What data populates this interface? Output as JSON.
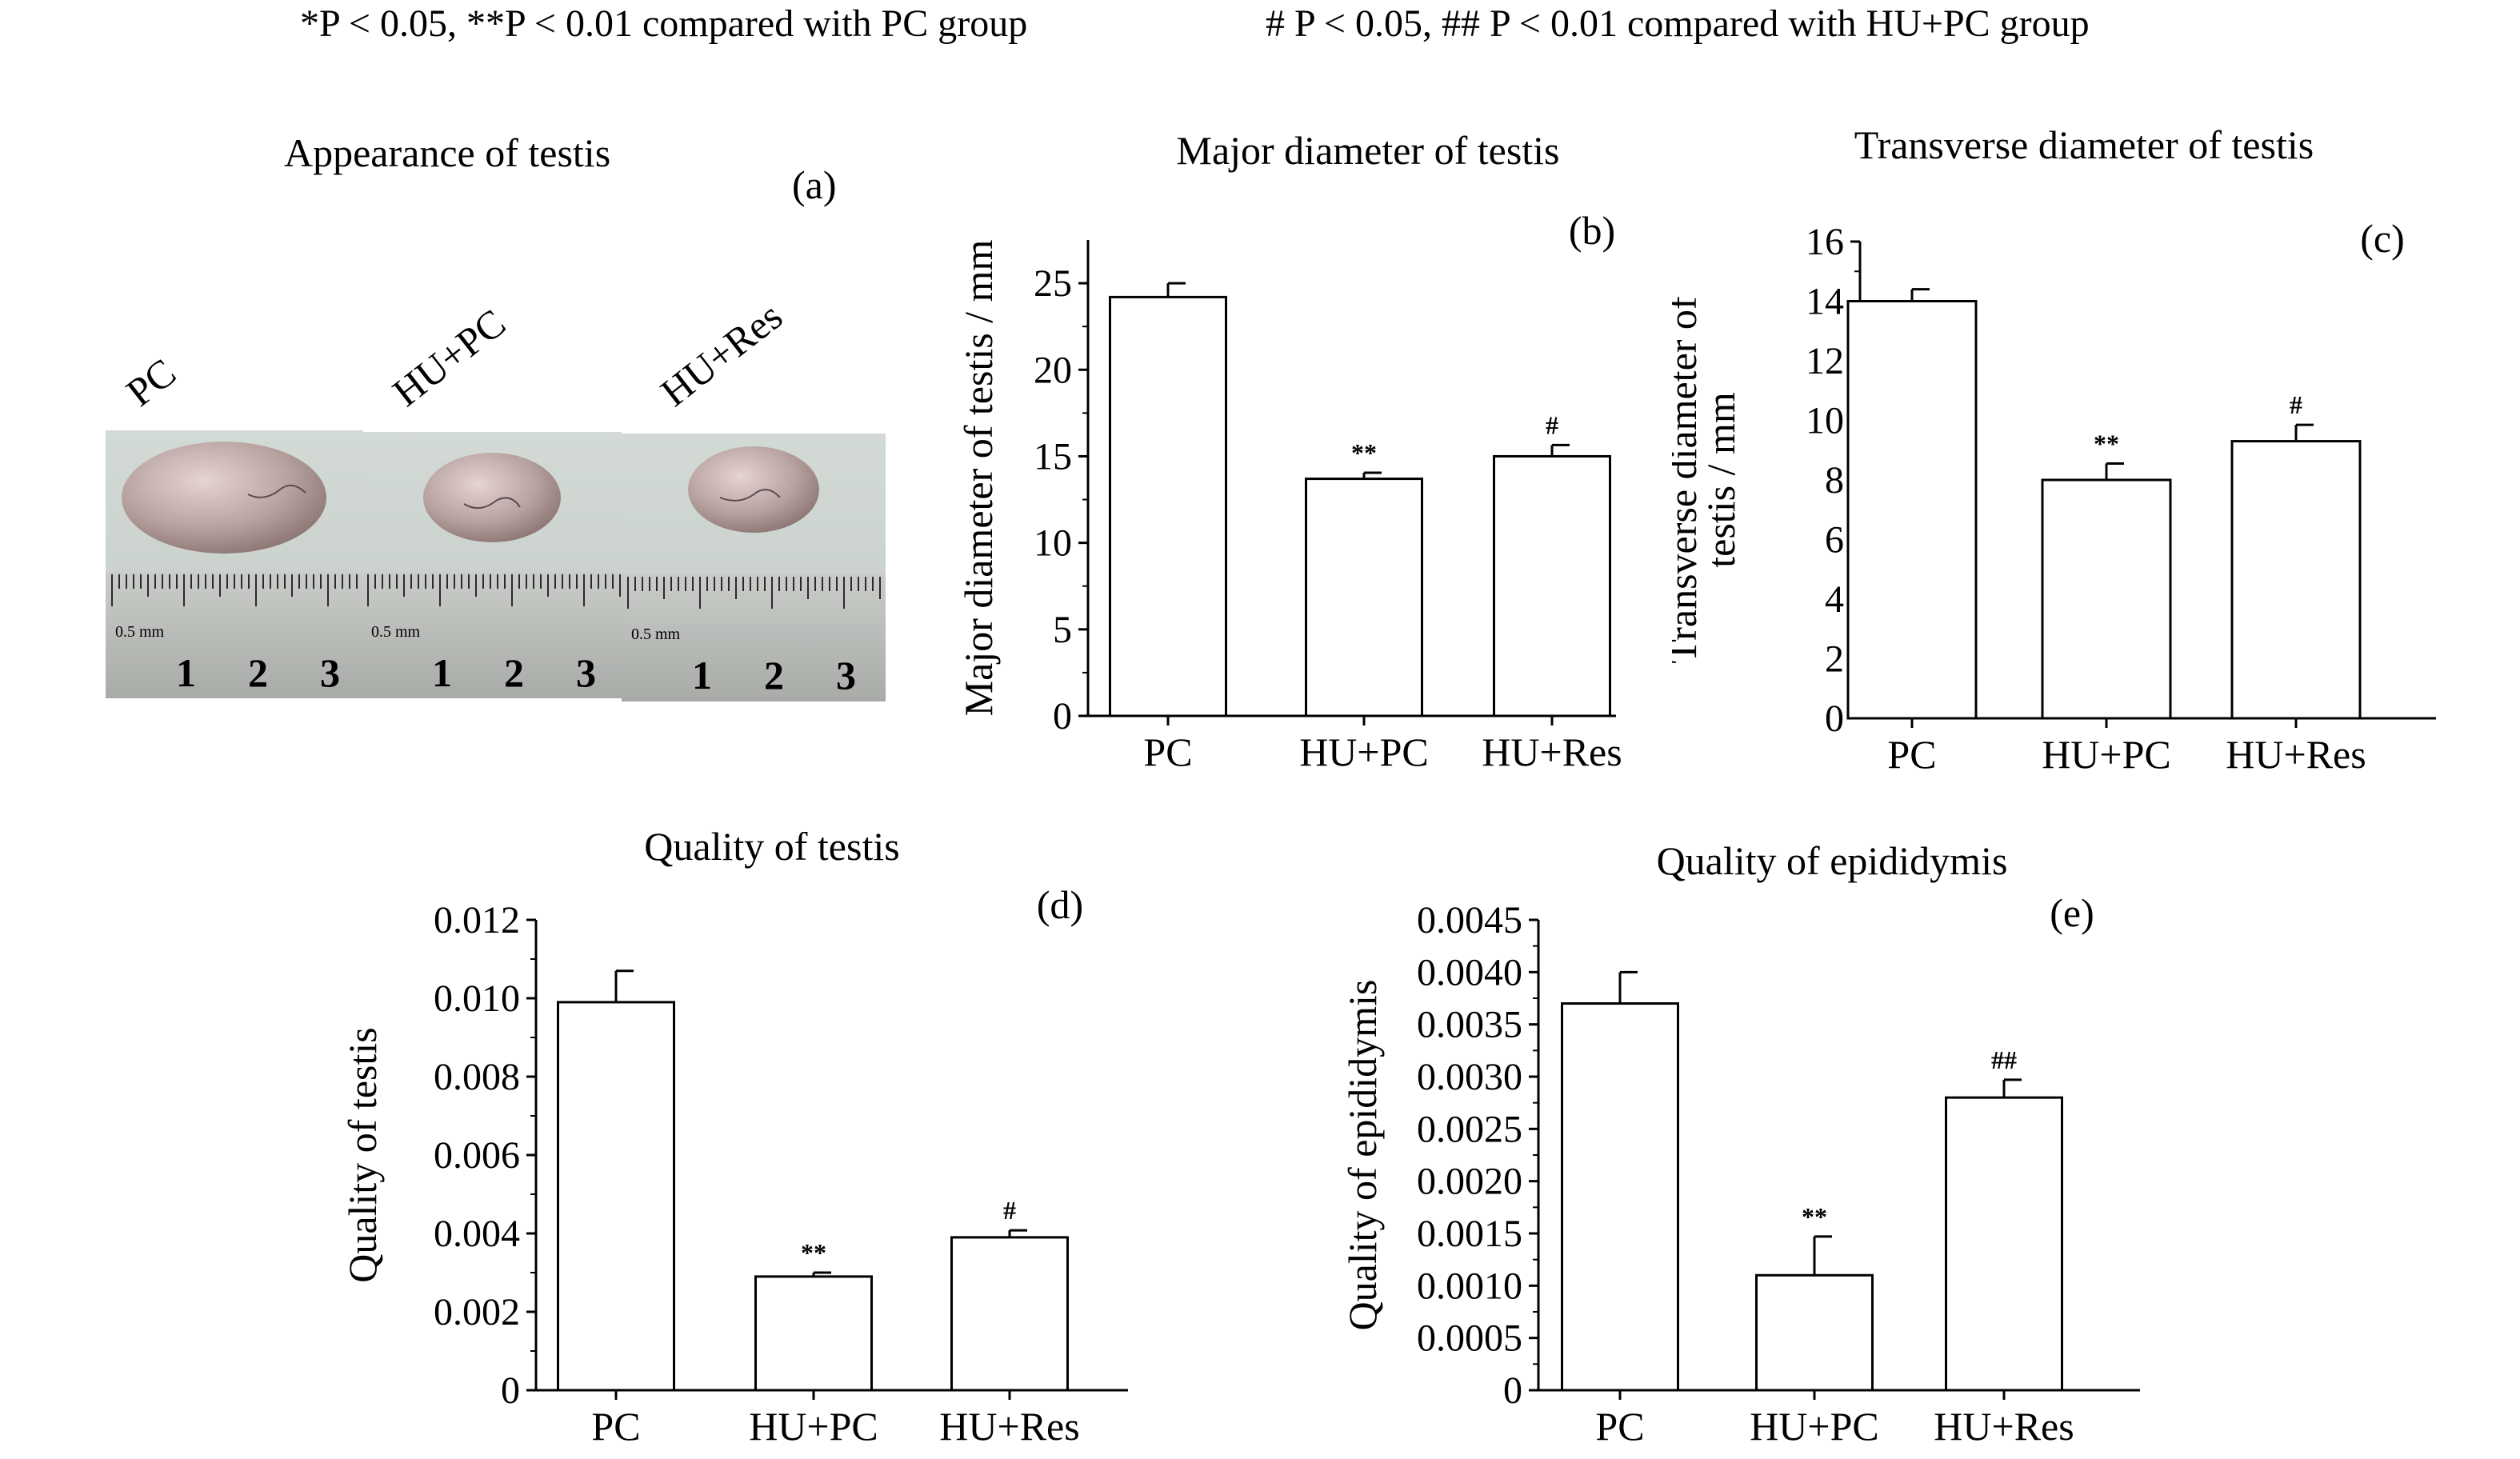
{
  "legend": {
    "left": "*P < 0.05, **P < 0.01 compared with PC group",
    "right": "# P < 0.05, ## P < 0.01 compared with HU+PC group"
  },
  "panel_a": {
    "title": "Appearance of testis",
    "letter": "(a)",
    "groups": [
      "PC",
      "HU+PC",
      "HU+Res"
    ],
    "ruler_label": "0.5 mm",
    "ruler_numbers": [
      "1",
      "2",
      "3"
    ]
  },
  "chart_data": [
    {
      "id": "b",
      "type": "bar",
      "title": "Major diameter of testis",
      "letter": "(b)",
      "categories": [
        "PC",
        "HU+PC",
        "HU+Res"
      ],
      "values": [
        24.2,
        13.7,
        15.0
      ],
      "errors": [
        0.8,
        0.35,
        0.65
      ],
      "annotations": [
        "",
        "**",
        "#"
      ],
      "ylabel": [
        "Major diameter of testis / mm"
      ],
      "ylim": [
        0,
        27.5
      ],
      "yticks": [
        0,
        5,
        10,
        15,
        20,
        25
      ],
      "ytick_labels": [
        "0",
        "5",
        "10",
        "15",
        "20",
        "25"
      ]
    },
    {
      "id": "c",
      "type": "bar",
      "title": "Transverse diameter of testis",
      "letter": "(c)",
      "categories": [
        "PC",
        "HU+PC",
        "HU+Res"
      ],
      "values": [
        14.0,
        8.0,
        9.3
      ],
      "errors": [
        0.4,
        0.55,
        0.55
      ],
      "annotations": [
        "",
        "**",
        "#"
      ],
      "ylabel": [
        "Transverse diameter of",
        "testis / mm"
      ],
      "ylim": [
        0,
        16
      ],
      "yticks": [
        0,
        2,
        4,
        6,
        8,
        10,
        12,
        14,
        16
      ],
      "ytick_labels": [
        "0",
        "2",
        "4",
        "6",
        "8",
        "10",
        "12",
        "14",
        "16"
      ]
    },
    {
      "id": "d",
      "type": "bar",
      "title": "Quality of testis",
      "letter": "(d)",
      "categories": [
        "PC",
        "HU+PC",
        "HU+Res"
      ],
      "values": [
        0.0099,
        0.0029,
        0.0039
      ],
      "errors": [
        0.0008,
        0.0001,
        0.00018
      ],
      "annotations": [
        "",
        "**",
        "#"
      ],
      "ylabel": [
        "Quality of testis"
      ],
      "ylim": [
        0,
        0.012
      ],
      "yticks": [
        0,
        0.002,
        0.004,
        0.006,
        0.008,
        0.01,
        0.012
      ],
      "ytick_labels": [
        "0",
        "0.002",
        "0.004",
        "0.006",
        "0.008",
        "0.010",
        "0.012"
      ]
    },
    {
      "id": "e",
      "type": "bar",
      "title": "Quality of epididymis",
      "letter": "(e)",
      "categories": [
        "PC",
        "HU+PC",
        "HU+Res"
      ],
      "values": [
        0.0037,
        0.0011,
        0.0028
      ],
      "errors": [
        0.0003,
        0.00037,
        0.00017
      ],
      "annotations": [
        "",
        "**",
        "##"
      ],
      "ylabel": [
        "Quality of epididymis"
      ],
      "ylim": [
        0,
        0.0045
      ],
      "yticks": [
        0,
        0.0005,
        0.001,
        0.0015,
        0.002,
        0.0025,
        0.003,
        0.0035,
        0.004,
        0.0045
      ],
      "ytick_labels": [
        "0",
        "0.0005",
        "0.0010",
        "0.0015",
        "0.0020",
        "0.0025",
        "0.0030",
        "0.0035",
        "0.0040",
        "0.0045"
      ]
    }
  ]
}
